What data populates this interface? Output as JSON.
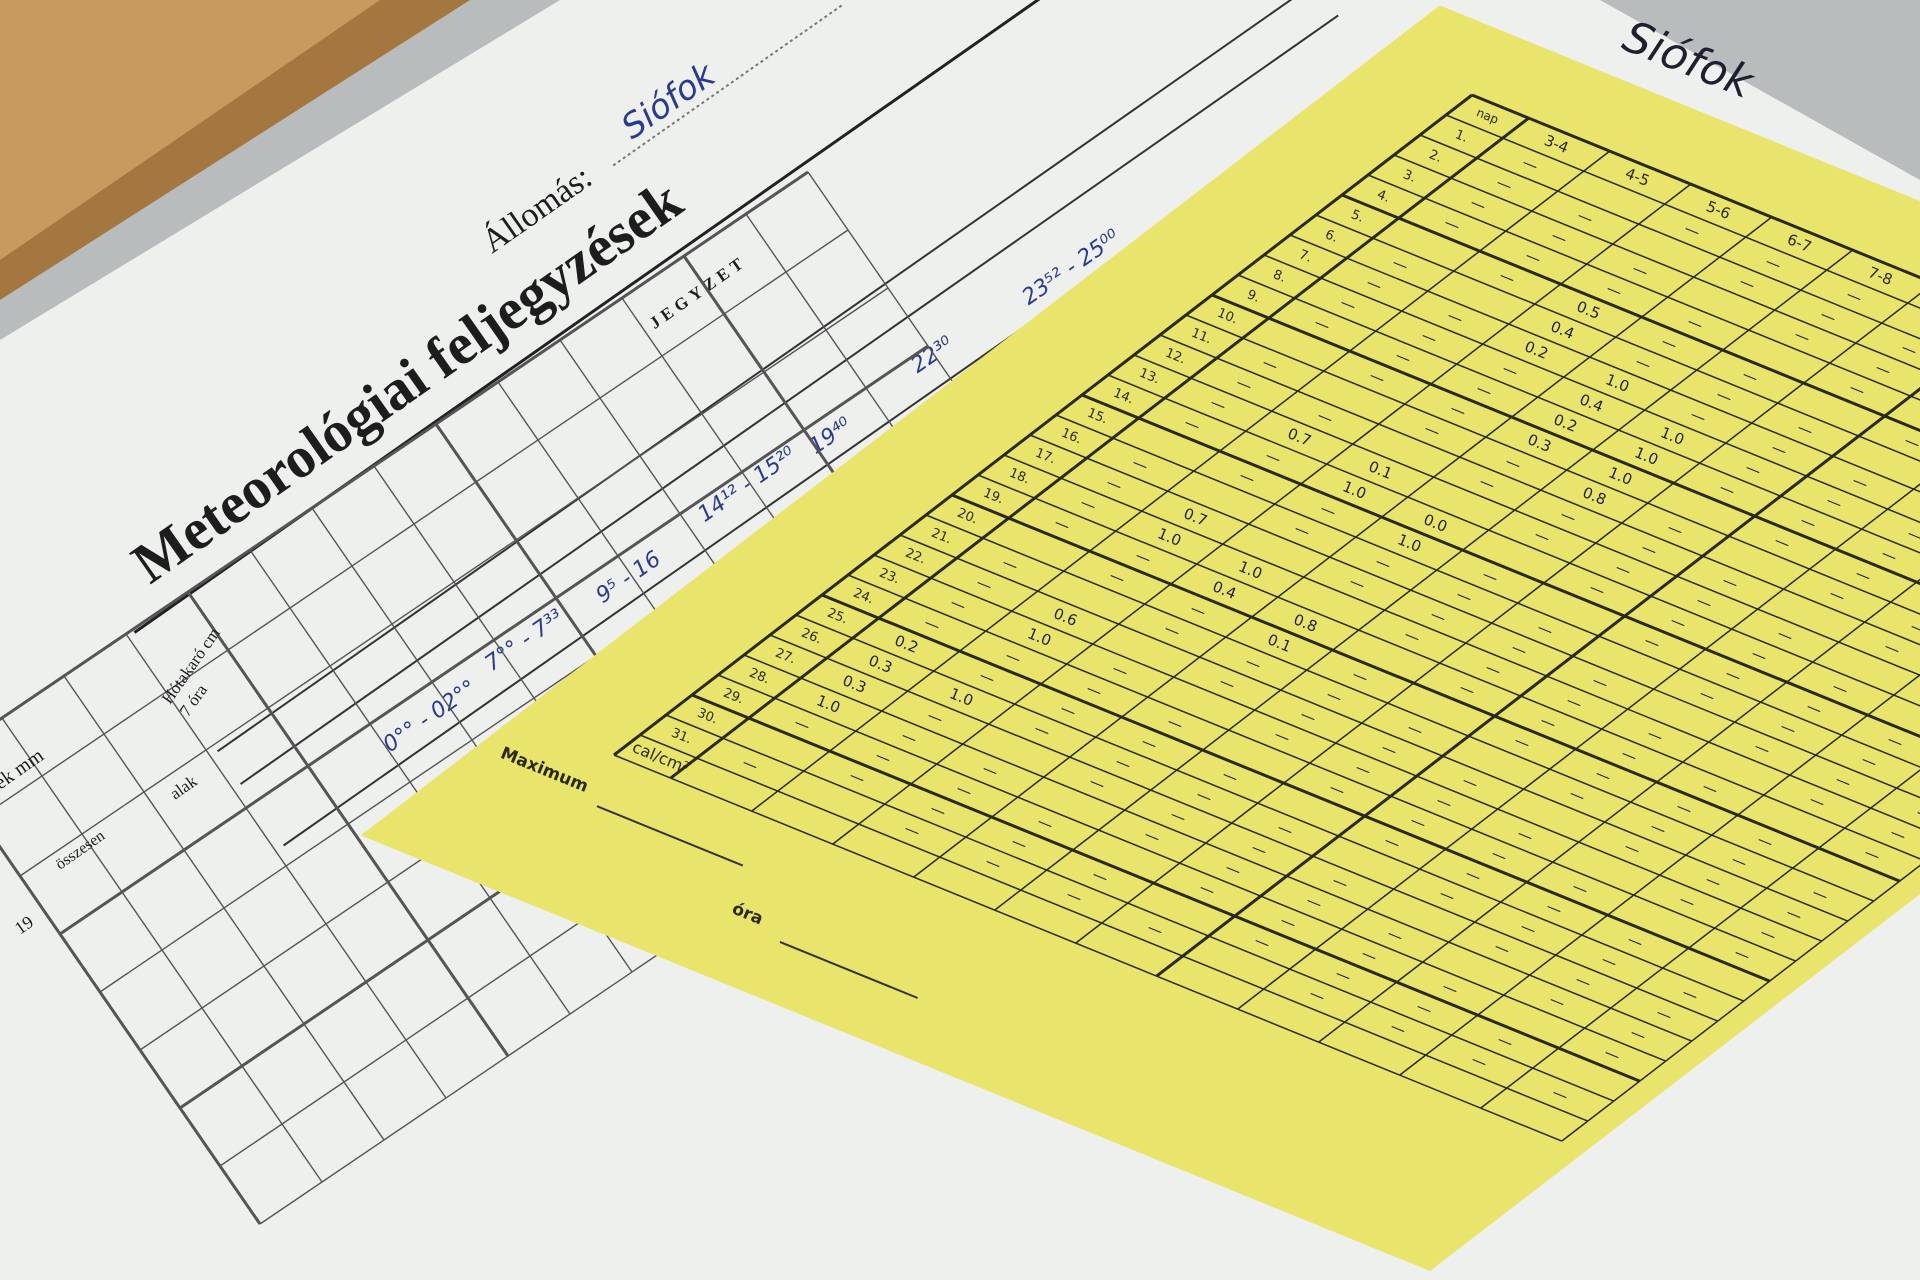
{
  "white_form": {
    "title": "Meteorológiai feljegyzések",
    "station_label": "Állomás:",
    "station_value": "Siófok",
    "section_label": "JEGYZET",
    "column_labels": [
      "Hótakaró cm",
      "7 óra",
      "alak",
      "összesen",
      "ek mm",
      "19"
    ],
    "handwritten_times": [
      "0°° - 02°°",
      "7°° - 7³³",
      "9⁵ - 16",
      "14¹² - 15²⁰",
      "19⁴⁰",
      "22³⁰",
      "23⁵² - 25⁰⁰"
    ]
  },
  "yellow_form": {
    "station_value": "Siófok",
    "day_header": "nap",
    "hour_columns": [
      "3-4",
      "4-5",
      "5-6",
      "6-7",
      "7-8"
    ],
    "days": [
      "1.",
      "2.",
      "3.",
      "4.",
      "5.",
      "6.",
      "7.",
      "8.",
      "9.",
      "10.",
      "11.",
      "12.",
      "13.",
      "14.",
      "15.",
      "16.",
      "17.",
      "18.",
      "19.",
      "20.",
      "21.",
      "22.",
      "23.",
      "24.",
      "25.",
      "26.",
      "27.",
      "28.",
      "29.",
      "30.",
      "31."
    ],
    "footer_unit": "cal/cm²",
    "footer_labels": [
      "Maximum",
      "óra"
    ],
    "values": [
      {
        "day": 5,
        "col": 2,
        "v": "0.5"
      },
      {
        "day": 6,
        "col": 2,
        "v": "0.4"
      },
      {
        "day": 7,
        "col": 2,
        "v": "0.2"
      },
      {
        "day": 7,
        "col": 3,
        "v": "1.0"
      },
      {
        "day": 8,
        "col": 3,
        "v": "0.4"
      },
      {
        "day": 9,
        "col": 3,
        "v": "0.2"
      },
      {
        "day": 10,
        "col": 3,
        "v": "0.3"
      },
      {
        "day": 8,
        "col": 4,
        "v": "1.0"
      },
      {
        "day": 9,
        "col": 4,
        "v": "1.0"
      },
      {
        "day": 10,
        "col": 4,
        "v": "1.0"
      },
      {
        "day": 11,
        "col": 4,
        "v": "0.8"
      },
      {
        "day": 13,
        "col": 1,
        "v": "0.7"
      },
      {
        "day": 13,
        "col": 2,
        "v": "0.1"
      },
      {
        "day": 14,
        "col": 2,
        "v": "1.0"
      },
      {
        "day": 14,
        "col": 3,
        "v": "0.0"
      },
      {
        "day": 15,
        "col": 3,
        "v": "1.0"
      },
      {
        "day": 17,
        "col": 1,
        "v": "0.7"
      },
      {
        "day": 18,
        "col": 1,
        "v": "1.0"
      },
      {
        "day": 18,
        "col": 2,
        "v": "1.0"
      },
      {
        "day": 19,
        "col": 2,
        "v": "0.4"
      },
      {
        "day": 19,
        "col": 3,
        "v": "0.8"
      },
      {
        "day": 20,
        "col": 3,
        "v": "0.1"
      },
      {
        "day": 22,
        "col": 1,
        "v": "0.6"
      },
      {
        "day": 23,
        "col": 1,
        "v": "1.0"
      },
      {
        "day": 25,
        "col": 0,
        "v": "0.2"
      },
      {
        "day": 26,
        "col": 0,
        "v": "0.3"
      },
      {
        "day": 26,
        "col": 1,
        "v": "1.0"
      },
      {
        "day": 27,
        "col": 0,
        "v": "0.3"
      },
      {
        "day": 28,
        "col": 0,
        "v": "1.0"
      }
    ]
  },
  "colors": {
    "wood": "#c89a5e",
    "paper": "#eef0ee",
    "yellow": "#e9e46c",
    "ink": "#2a3b8f"
  }
}
